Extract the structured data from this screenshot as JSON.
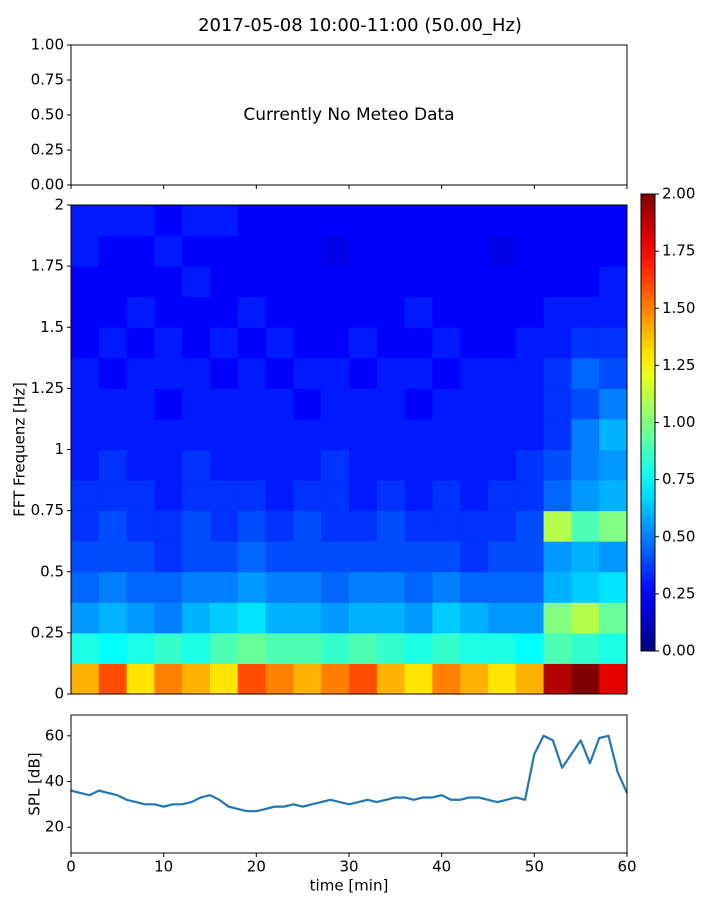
{
  "chart_data": [
    {
      "type": "empty",
      "title": "2017-05-08 10:00-11:00 (50.00_Hz)",
      "annotation": "Currently No Meteo Data",
      "xlim": [
        0,
        60
      ],
      "xticks": [
        0,
        10,
        20,
        30,
        40,
        50,
        60
      ],
      "ylim": [
        0,
        1
      ],
      "yticks": [
        {
          "value": 0,
          "label": "0.00"
        },
        {
          "value": 0.25,
          "label": "0.25"
        },
        {
          "value": 0.5,
          "label": "0.50"
        },
        {
          "value": 0.75,
          "label": "0.75"
        },
        {
          "value": 1,
          "label": "1.00"
        }
      ]
    },
    {
      "type": "heatmap",
      "ylabel": "FFT Frequenz [Hz]",
      "colormap": "jet",
      "xlim": [
        0,
        60
      ],
      "ylim": [
        0,
        2
      ],
      "yticks": [
        0,
        0.25,
        0.5,
        0.75,
        1,
        1.25,
        1.5,
        1.75,
        2
      ],
      "clim": [
        0,
        2
      ],
      "cticks": [
        {
          "value": 0,
          "label": "0.00"
        },
        {
          "value": 0.25,
          "label": "0.25"
        },
        {
          "value": 0.5,
          "label": "0.50"
        },
        {
          "value": 0.75,
          "label": "0.75"
        },
        {
          "value": 1,
          "label": "1.00"
        },
        {
          "value": 1.25,
          "label": "1.25"
        },
        {
          "value": 1.5,
          "label": "1.50"
        },
        {
          "value": 1.75,
          "label": "1.75"
        },
        {
          "value": 2,
          "label": "2.00"
        }
      ],
      "z": [
        [
          1.4,
          1.6,
          1.3,
          1.5,
          1.4,
          1.3,
          1.6,
          1.5,
          1.4,
          1.5,
          1.6,
          1.4,
          1.3,
          1.5,
          1.4,
          1.3,
          1.4,
          1.9,
          2.0,
          1.8
        ],
        [
          0.8,
          0.75,
          0.8,
          0.85,
          0.8,
          0.9,
          0.95,
          0.9,
          0.9,
          0.85,
          0.9,
          0.85,
          0.8,
          0.85,
          0.8,
          0.8,
          0.75,
          0.9,
          0.85,
          0.8
        ],
        [
          0.55,
          0.6,
          0.55,
          0.5,
          0.6,
          0.65,
          0.7,
          0.6,
          0.6,
          0.55,
          0.6,
          0.6,
          0.55,
          0.65,
          0.6,
          0.55,
          0.55,
          1.0,
          1.1,
          0.95
        ],
        [
          0.45,
          0.5,
          0.45,
          0.45,
          0.5,
          0.5,
          0.55,
          0.5,
          0.5,
          0.45,
          0.5,
          0.5,
          0.45,
          0.5,
          0.45,
          0.45,
          0.45,
          0.6,
          0.65,
          0.7
        ],
        [
          0.4,
          0.4,
          0.4,
          0.35,
          0.4,
          0.4,
          0.45,
          0.4,
          0.4,
          0.4,
          0.4,
          0.4,
          0.4,
          0.4,
          0.35,
          0.4,
          0.4,
          0.55,
          0.6,
          0.55
        ],
        [
          0.35,
          0.4,
          0.35,
          0.35,
          0.4,
          0.35,
          0.4,
          0.35,
          0.4,
          0.35,
          0.35,
          0.4,
          0.35,
          0.35,
          0.35,
          0.35,
          0.4,
          1.1,
          0.9,
          1.0
        ],
        [
          0.35,
          0.35,
          0.35,
          0.3,
          0.35,
          0.35,
          0.35,
          0.3,
          0.35,
          0.35,
          0.3,
          0.35,
          0.3,
          0.35,
          0.3,
          0.35,
          0.35,
          0.45,
          0.55,
          0.6
        ],
        [
          0.3,
          0.35,
          0.3,
          0.3,
          0.35,
          0.3,
          0.3,
          0.3,
          0.3,
          0.35,
          0.3,
          0.3,
          0.3,
          0.3,
          0.3,
          0.3,
          0.35,
          0.4,
          0.5,
          0.55
        ],
        [
          0.3,
          0.3,
          0.3,
          0.3,
          0.3,
          0.3,
          0.3,
          0.3,
          0.3,
          0.3,
          0.3,
          0.3,
          0.3,
          0.3,
          0.3,
          0.3,
          0.3,
          0.35,
          0.5,
          0.6
        ],
        [
          0.3,
          0.3,
          0.3,
          0.25,
          0.3,
          0.3,
          0.3,
          0.3,
          0.25,
          0.3,
          0.3,
          0.3,
          0.25,
          0.3,
          0.3,
          0.3,
          0.3,
          0.35,
          0.4,
          0.5
        ],
        [
          0.3,
          0.25,
          0.3,
          0.3,
          0.3,
          0.25,
          0.3,
          0.25,
          0.3,
          0.3,
          0.25,
          0.3,
          0.3,
          0.25,
          0.3,
          0.3,
          0.3,
          0.35,
          0.45,
          0.4
        ],
        [
          0.25,
          0.3,
          0.25,
          0.3,
          0.25,
          0.3,
          0.25,
          0.3,
          0.25,
          0.25,
          0.3,
          0.25,
          0.25,
          0.3,
          0.25,
          0.25,
          0.3,
          0.3,
          0.35,
          0.35
        ],
        [
          0.25,
          0.25,
          0.3,
          0.25,
          0.25,
          0.25,
          0.3,
          0.25,
          0.25,
          0.25,
          0.25,
          0.25,
          0.3,
          0.25,
          0.25,
          0.25,
          0.25,
          0.3,
          0.3,
          0.3
        ],
        [
          0.25,
          0.25,
          0.25,
          0.25,
          0.3,
          0.25,
          0.25,
          0.25,
          0.25,
          0.25,
          0.25,
          0.25,
          0.25,
          0.25,
          0.25,
          0.25,
          0.25,
          0.25,
          0.25,
          0.3
        ],
        [
          0.3,
          0.25,
          0.25,
          0.3,
          0.25,
          0.25,
          0.25,
          0.25,
          0.25,
          0.2,
          0.25,
          0.25,
          0.25,
          0.25,
          0.25,
          0.2,
          0.25,
          0.25,
          0.25,
          0.25
        ],
        [
          0.3,
          0.3,
          0.3,
          0.25,
          0.3,
          0.3,
          0.25,
          0.25,
          0.25,
          0.25,
          0.25,
          0.25,
          0.25,
          0.25,
          0.25,
          0.25,
          0.25,
          0.25,
          0.25,
          0.25
        ]
      ]
    },
    {
      "type": "line",
      "xlabel": "time [min]",
      "ylabel": "SPL [dB]",
      "color": "#1f77b4",
      "xlim": [
        0,
        60
      ],
      "xticks": [
        0,
        10,
        20,
        30,
        40,
        50,
        60
      ],
      "ylim": [
        8.7,
        69.1
      ],
      "yticks": [
        20,
        40,
        60
      ],
      "x": [
        0,
        1,
        2,
        3,
        4,
        5,
        6,
        7,
        8,
        9,
        10,
        11,
        12,
        13,
        14,
        15,
        16,
        17,
        18,
        19,
        20,
        21,
        22,
        23,
        24,
        25,
        26,
        27,
        28,
        29,
        30,
        31,
        32,
        33,
        34,
        35,
        36,
        37,
        38,
        39,
        40,
        41,
        42,
        43,
        44,
        45,
        46,
        47,
        48,
        49,
        50,
        51,
        52,
        53,
        54,
        55,
        56,
        57,
        58,
        59,
        60
      ],
      "values": [
        36,
        35,
        34,
        36,
        35,
        34,
        32,
        31,
        30,
        30,
        29,
        30,
        30,
        31,
        33,
        34,
        32,
        29,
        28,
        27,
        27,
        28,
        29,
        29,
        30,
        29,
        30,
        31,
        32,
        31,
        30,
        31,
        32,
        31,
        32,
        33,
        33,
        32,
        33,
        33,
        34,
        32,
        32,
        33,
        33,
        32,
        31,
        32,
        33,
        32,
        52,
        60,
        58,
        46,
        52,
        58,
        48,
        59,
        60,
        44,
        35
      ]
    }
  ]
}
